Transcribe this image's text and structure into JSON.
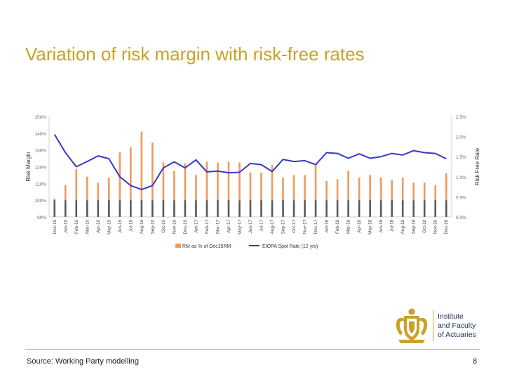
{
  "slide": {
    "title": "Variation of risk margin with risk-free rates",
    "source": "Source: Working Party modelling",
    "page_number": "8"
  },
  "logo": {
    "lines": [
      "Institute",
      "and Faculty",
      "of Actuaries"
    ],
    "icon": "crest-icon",
    "color": "#c9a227",
    "text_color": "#1e2c55"
  },
  "colors": {
    "title": "#c9a227",
    "bars_rm": "#f09a5a",
    "bars_base": "#595959",
    "line": "#3838c8"
  },
  "chart_data": {
    "type": "bar",
    "categories": [
      "Dec-15",
      "Jan-16",
      "Feb-16",
      "Mar-16",
      "Apr-16",
      "May-16",
      "Jun-16",
      "Jul-16",
      "Aug-16",
      "Sep-16",
      "Oct-16",
      "Nov-16",
      "Dec-16",
      "Jan-17",
      "Feb-17",
      "Mar-17",
      "Apr-17",
      "May-17",
      "Jun-17",
      "Jul-17",
      "Aug-17",
      "Sep-17",
      "Oct-17",
      "Nov-17",
      "Dec-17",
      "Jan-18",
      "Feb-18",
      "Mar-18",
      "Apr-18",
      "May-18",
      "Jun-18",
      "Jul-18",
      "Aug-18",
      "Sep-18",
      "Oct-18",
      "Nov-18",
      "Dec-18"
    ],
    "series": [
      {
        "name": "RM as % of Dec15RM",
        "axis": "left",
        "style": "bar",
        "values": [
          101,
          109,
          118.5,
          114,
          110.5,
          113.5,
          128.5,
          131.5,
          141,
          134.5,
          122.5,
          117.5,
          122,
          115,
          123,
          122.5,
          123,
          122.5,
          116.5,
          116.5,
          121,
          113.5,
          115,
          115,
          121,
          111.5,
          112.5,
          117.5,
          113.5,
          115,
          113.5,
          112,
          113.5,
          110.5,
          110.5,
          109,
          116
        ]
      },
      {
        "name": "EIOPA Spot Rate (12 yrs)",
        "axis": "right",
        "style": "line",
        "values": [
          2.05,
          1.6,
          1.25,
          1.38,
          1.52,
          1.45,
          1.0,
          0.78,
          0.68,
          0.78,
          1.22,
          1.37,
          1.22,
          1.42,
          1.12,
          1.14,
          1.1,
          1.11,
          1.33,
          1.3,
          1.13,
          1.43,
          1.38,
          1.4,
          1.3,
          1.6,
          1.58,
          1.46,
          1.57,
          1.46,
          1.5,
          1.58,
          1.54,
          1.65,
          1.6,
          1.58,
          1.45
        ]
      }
    ],
    "ylabel_left": "Risk Margin",
    "ylabel_right": "Risk Free Rate",
    "ylim_left": [
      90,
      150
    ],
    "ylim_right": [
      0,
      2.5
    ],
    "yticks_left": [
      "90%",
      "100%",
      "110%",
      "120%",
      "130%",
      "140%",
      "150%"
    ],
    "yticks_right": [
      "0.0%",
      "0.5%",
      "1.0%",
      "1.5%",
      "2.0%",
      "2.5%"
    ],
    "bar_base_value": 100,
    "legend_position": "bottom",
    "grid": false
  }
}
